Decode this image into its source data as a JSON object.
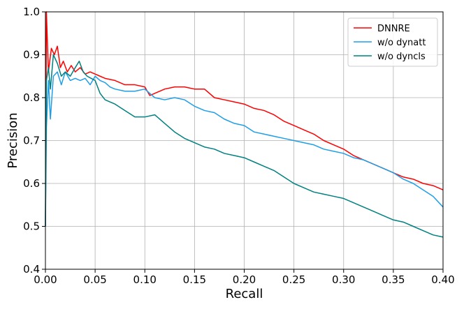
{
  "chart_data": {
    "type": "line",
    "title": "",
    "xlabel": "Recall",
    "ylabel": "Precision",
    "xlim": [
      0.0,
      0.4
    ],
    "ylim": [
      0.4,
      1.0
    ],
    "xticks": [
      "0.00",
      "0.05",
      "0.10",
      "0.15",
      "0.20",
      "0.25",
      "0.30",
      "0.35",
      "0.40"
    ],
    "yticks": [
      "0.4",
      "0.5",
      "0.6",
      "0.7",
      "0.8",
      "0.9",
      "1.0"
    ],
    "grid": true,
    "legend_position": "top-right",
    "series": [
      {
        "name": "DNNRE",
        "color": "#ff0000",
        "x": [
          0.0,
          0.001,
          0.003,
          0.006,
          0.009,
          0.012,
          0.015,
          0.018,
          0.022,
          0.026,
          0.03,
          0.035,
          0.04,
          0.045,
          0.05,
          0.055,
          0.06,
          0.07,
          0.08,
          0.09,
          0.1,
          0.105,
          0.11,
          0.12,
          0.13,
          0.14,
          0.15,
          0.16,
          0.17,
          0.18,
          0.19,
          0.2,
          0.21,
          0.22,
          0.23,
          0.24,
          0.25,
          0.26,
          0.27,
          0.28,
          0.29,
          0.3,
          0.31,
          0.32,
          0.33,
          0.34,
          0.35,
          0.36,
          0.37,
          0.38,
          0.39,
          0.4
        ],
        "y": [
          0.5,
          1.0,
          0.86,
          0.915,
          0.9,
          0.92,
          0.87,
          0.885,
          0.86,
          0.875,
          0.86,
          0.87,
          0.855,
          0.86,
          0.855,
          0.85,
          0.845,
          0.84,
          0.83,
          0.83,
          0.825,
          0.805,
          0.81,
          0.82,
          0.825,
          0.825,
          0.82,
          0.82,
          0.8,
          0.795,
          0.79,
          0.785,
          0.775,
          0.77,
          0.76,
          0.745,
          0.735,
          0.725,
          0.715,
          0.7,
          0.69,
          0.68,
          0.665,
          0.655,
          0.645,
          0.635,
          0.625,
          0.615,
          0.61,
          0.6,
          0.595,
          0.585
        ]
      },
      {
        "name": "w/o dynatt",
        "color": "#1f9ee8",
        "x": [
          0.0,
          0.001,
          0.003,
          0.005,
          0.008,
          0.012,
          0.016,
          0.02,
          0.025,
          0.03,
          0.035,
          0.04,
          0.045,
          0.05,
          0.055,
          0.06,
          0.065,
          0.07,
          0.08,
          0.09,
          0.1,
          0.11,
          0.12,
          0.13,
          0.14,
          0.15,
          0.16,
          0.17,
          0.18,
          0.19,
          0.2,
          0.21,
          0.22,
          0.23,
          0.24,
          0.25,
          0.26,
          0.27,
          0.28,
          0.29,
          0.3,
          0.31,
          0.32,
          0.33,
          0.34,
          0.35,
          0.36,
          0.37,
          0.38,
          0.39,
          0.4
        ],
        "y": [
          0.5,
          0.73,
          0.84,
          0.75,
          0.85,
          0.86,
          0.83,
          0.86,
          0.84,
          0.845,
          0.84,
          0.845,
          0.83,
          0.85,
          0.84,
          0.835,
          0.825,
          0.82,
          0.815,
          0.815,
          0.82,
          0.8,
          0.795,
          0.8,
          0.795,
          0.78,
          0.77,
          0.765,
          0.75,
          0.74,
          0.735,
          0.72,
          0.715,
          0.71,
          0.705,
          0.7,
          0.695,
          0.69,
          0.68,
          0.675,
          0.67,
          0.66,
          0.655,
          0.645,
          0.635,
          0.625,
          0.61,
          0.6,
          0.585,
          0.57,
          0.545
        ]
      },
      {
        "name": "w/o dyncls",
        "color": "#008080",
        "x": [
          0.0,
          0.001,
          0.003,
          0.005,
          0.008,
          0.012,
          0.016,
          0.02,
          0.025,
          0.03,
          0.034,
          0.038,
          0.042,
          0.046,
          0.05,
          0.055,
          0.06,
          0.07,
          0.08,
          0.09,
          0.1,
          0.11,
          0.12,
          0.13,
          0.14,
          0.15,
          0.16,
          0.17,
          0.18,
          0.19,
          0.2,
          0.21,
          0.22,
          0.23,
          0.24,
          0.25,
          0.26,
          0.27,
          0.28,
          0.29,
          0.3,
          0.31,
          0.32,
          0.33,
          0.34,
          0.35,
          0.36,
          0.37,
          0.38,
          0.39,
          0.4
        ],
        "y": [
          0.5,
          0.84,
          0.87,
          0.82,
          0.9,
          0.88,
          0.85,
          0.86,
          0.85,
          0.87,
          0.885,
          0.86,
          0.85,
          0.845,
          0.84,
          0.81,
          0.795,
          0.785,
          0.77,
          0.755,
          0.755,
          0.76,
          0.74,
          0.72,
          0.705,
          0.695,
          0.685,
          0.68,
          0.67,
          0.665,
          0.66,
          0.65,
          0.64,
          0.63,
          0.615,
          0.6,
          0.59,
          0.58,
          0.575,
          0.57,
          0.565,
          0.555,
          0.545,
          0.535,
          0.525,
          0.515,
          0.51,
          0.5,
          0.49,
          0.48,
          0.475
        ]
      }
    ]
  }
}
